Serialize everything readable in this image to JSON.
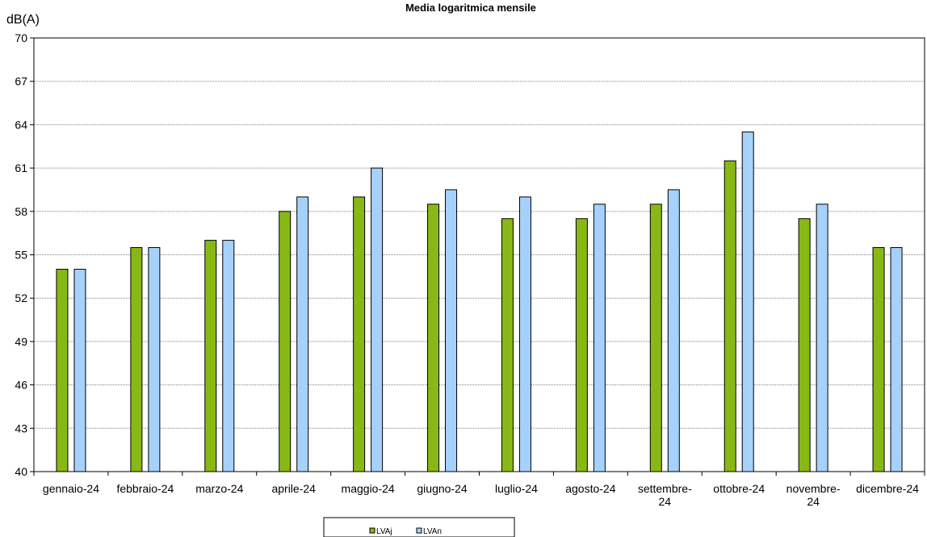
{
  "chart_data": {
    "type": "bar",
    "title": "Media logaritmica mensile",
    "ylabel": "dB(A)",
    "xlabel": "",
    "ylim": [
      40,
      70
    ],
    "yticks": [
      40,
      43,
      46,
      49,
      52,
      55,
      58,
      61,
      64,
      67,
      70
    ],
    "grid": true,
    "legend_position": "bottom",
    "categories": [
      [
        "gennaio-24"
      ],
      [
        "febbraio-24"
      ],
      [
        "marzo-24"
      ],
      [
        "aprile-24"
      ],
      [
        "maggio-24"
      ],
      [
        "giugno-24"
      ],
      [
        "luglio-24"
      ],
      [
        "agosto-24"
      ],
      [
        "settembre-",
        "24"
      ],
      [
        "ottobre-24"
      ],
      [
        "novembre-",
        "24"
      ],
      [
        "dicembre-24"
      ]
    ],
    "series": [
      {
        "name": "LVAj",
        "color": "#88b814",
        "values": [
          54,
          55.5,
          56,
          58,
          59,
          58.5,
          57.5,
          57.5,
          58.5,
          61.5,
          57.5,
          55.5
        ]
      },
      {
        "name": "LVAn",
        "color": "#a6d1fa",
        "values": [
          54,
          55.5,
          56,
          59,
          61,
          59.5,
          59,
          58.5,
          59.5,
          63.5,
          58.5,
          55.5
        ]
      }
    ]
  }
}
